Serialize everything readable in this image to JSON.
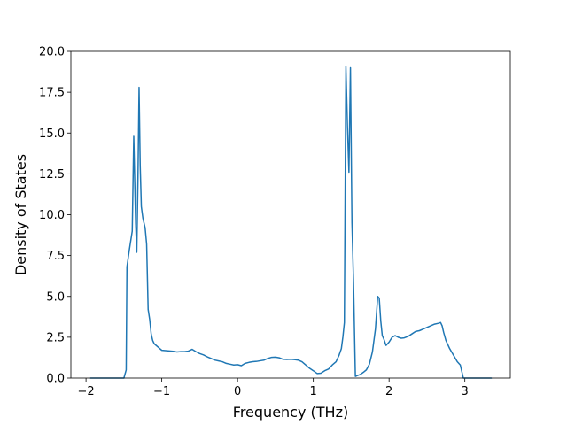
{
  "chart_data": {
    "type": "line",
    "xlabel": "Frequency (THz)",
    "ylabel": "Density of States",
    "xlim": [
      -2.2,
      3.6
    ],
    "ylim": [
      0,
      20
    ],
    "x_ticks": [
      -2,
      -1,
      0,
      1,
      2,
      3
    ],
    "x_tick_labels": [
      "−2",
      "−1",
      "0",
      "1",
      "2",
      "3"
    ],
    "y_ticks": [
      0,
      2.5,
      5,
      7.5,
      10,
      12.5,
      15,
      17.5,
      20
    ],
    "y_tick_labels": [
      "0.0",
      "2.5",
      "5.0",
      "7.5",
      "10.0",
      "12.5",
      "15.0",
      "17.5",
      "20.0"
    ],
    "grid": false,
    "line_color": "#1f77b4",
    "series": [
      {
        "x": [
          -1.94,
          -1.5,
          -1.47,
          -1.46,
          -1.43,
          -1.39,
          -1.37,
          -1.345,
          -1.33,
          -1.315,
          -1.3,
          -1.285,
          -1.27,
          -1.25,
          -1.22,
          -1.2,
          -1.18,
          -1.16,
          -1.14,
          -1.12,
          -1.1,
          -1.05,
          -1.0,
          -0.95,
          -0.9,
          -0.85,
          -0.8,
          -0.75,
          -0.7,
          -0.65,
          -0.6,
          -0.55,
          -0.5,
          -0.45,
          -0.4,
          -0.35,
          -0.3,
          -0.25,
          -0.2,
          -0.15,
          -0.1,
          -0.05,
          0.0,
          0.05,
          0.1,
          0.15,
          0.2,
          0.25,
          0.3,
          0.35,
          0.4,
          0.45,
          0.5,
          0.55,
          0.6,
          0.65,
          0.7,
          0.75,
          0.8,
          0.85,
          0.9,
          0.95,
          1.0,
          1.05,
          1.1,
          1.15,
          1.2,
          1.25,
          1.3,
          1.34,
          1.37,
          1.39,
          1.41,
          1.43,
          1.45,
          1.47,
          1.49,
          1.51,
          1.53,
          1.555,
          1.58,
          1.62,
          1.66,
          1.7,
          1.74,
          1.78,
          1.82,
          1.85,
          1.87,
          1.89,
          1.91,
          1.93,
          1.96,
          2.0,
          2.04,
          2.08,
          2.12,
          2.16,
          2.2,
          2.25,
          2.3,
          2.35,
          2.4,
          2.45,
          2.5,
          2.55,
          2.6,
          2.65,
          2.68,
          2.7,
          2.72,
          2.75,
          2.8,
          2.85,
          2.9,
          2.94,
          2.98,
          3.1,
          3.2,
          3.35
        ],
        "y": [
          0.0,
          0.0,
          0.5,
          6.8,
          7.8,
          9.0,
          14.8,
          9.5,
          7.7,
          12.0,
          17.8,
          13.0,
          10.5,
          9.8,
          9.2,
          8.2,
          4.2,
          3.6,
          2.7,
          2.3,
          2.1,
          1.9,
          1.7,
          1.68,
          1.66,
          1.64,
          1.6,
          1.62,
          1.62,
          1.65,
          1.76,
          1.62,
          1.5,
          1.42,
          1.3,
          1.2,
          1.1,
          1.05,
          1.0,
          0.9,
          0.85,
          0.8,
          0.82,
          0.76,
          0.9,
          0.96,
          1.0,
          1.02,
          1.06,
          1.1,
          1.2,
          1.27,
          1.28,
          1.24,
          1.15,
          1.14,
          1.15,
          1.13,
          1.1,
          1.0,
          0.8,
          0.6,
          0.45,
          0.28,
          0.3,
          0.45,
          0.55,
          0.8,
          1.0,
          1.4,
          1.8,
          2.5,
          3.4,
          19.1,
          15.5,
          12.6,
          19.0,
          9.5,
          6.0,
          0.1,
          0.15,
          0.22,
          0.35,
          0.5,
          0.85,
          1.6,
          3.0,
          5.0,
          4.9,
          3.5,
          2.6,
          2.4,
          2.0,
          2.2,
          2.5,
          2.6,
          2.5,
          2.44,
          2.46,
          2.55,
          2.7,
          2.85,
          2.9,
          3.0,
          3.1,
          3.2,
          3.3,
          3.35,
          3.4,
          3.2,
          2.8,
          2.3,
          1.8,
          1.4,
          1.0,
          0.8,
          0.0,
          0.0,
          0.0,
          0.0
        ]
      }
    ]
  }
}
